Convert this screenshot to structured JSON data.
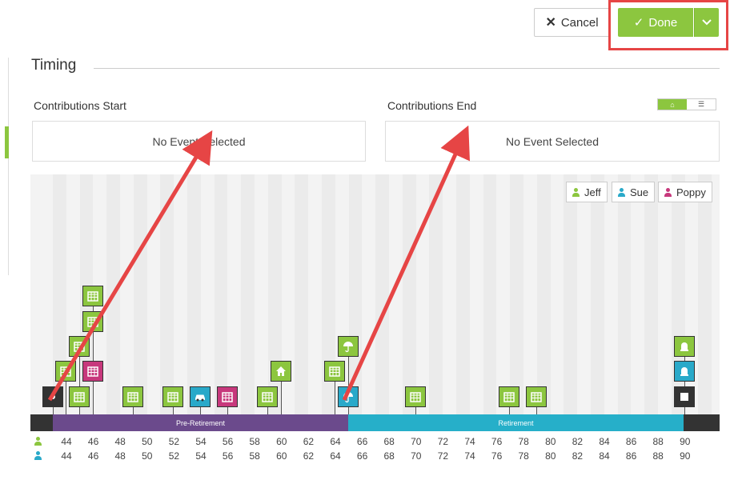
{
  "toolbar": {
    "cancel_label": "Cancel",
    "done_label": "Done"
  },
  "timing": {
    "title": "Timing",
    "contributions_start": {
      "label": "Contributions Start",
      "value": "No Event Selected"
    },
    "contributions_end": {
      "label": "Contributions End",
      "value": "No Event Selected"
    },
    "view_toggle": [
      "chart-view",
      "list-view"
    ],
    "active_view": "chart-view"
  },
  "legend": [
    {
      "name": "Jeff",
      "color": "#8cc63f"
    },
    {
      "name": "Sue",
      "color": "#29a9c9"
    },
    {
      "name": "Poppy",
      "color": "#c7387c"
    }
  ],
  "phases": [
    {
      "label": "Pre-Retirement",
      "color": "#6b4a8c"
    },
    {
      "label": "Retirement",
      "color": "#26afc9"
    }
  ],
  "ages": {
    "jeff": [
      "44",
      "46",
      "48",
      "50",
      "52",
      "54",
      "56",
      "58",
      "60",
      "62",
      "64",
      "66",
      "68",
      "70",
      "72",
      "74",
      "76",
      "78",
      "80",
      "82",
      "84",
      "86",
      "88",
      "90"
    ],
    "sue": [
      "44",
      "46",
      "48",
      "50",
      "52",
      "54",
      "56",
      "58",
      "60",
      "62",
      "64",
      "66",
      "68",
      "70",
      "72",
      "74",
      "76",
      "78",
      "80",
      "82",
      "84",
      "86",
      "88",
      "90"
    ]
  },
  "colors": {
    "accent": "#8cc63f",
    "annotation_red": "#e64545",
    "event_black": "#333333"
  }
}
